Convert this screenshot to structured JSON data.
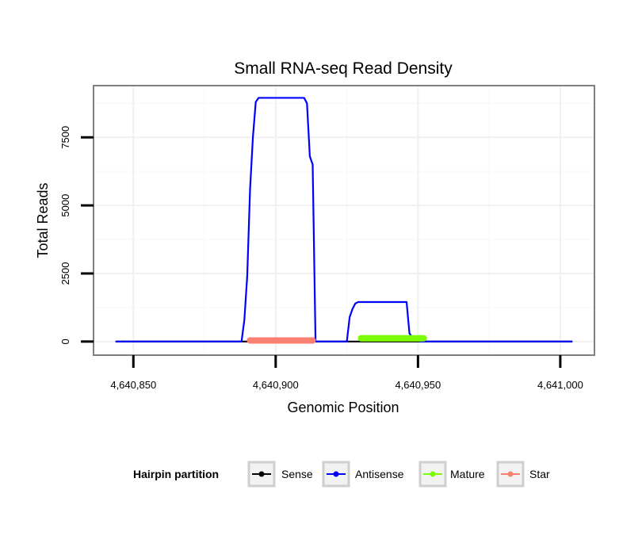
{
  "chart_data": {
    "type": "line",
    "title": "Small RNA-seq Read Density",
    "xlabel": "Genomic Position",
    "ylabel": "Total Reads",
    "xlim": [
      4640836,
      4641012
    ],
    "ylim": [
      -500,
      9400
    ],
    "x_ticks": [
      4640850,
      4640900,
      4640950,
      4641000
    ],
    "x_tick_labels": [
      "4,640,850",
      "4,640,900",
      "4,640,950",
      "4,641,000"
    ],
    "y_ticks": [
      0,
      2500,
      5000,
      7500
    ],
    "y_tick_labels": [
      "0",
      "2500",
      "5000",
      "7500"
    ],
    "grid": true,
    "legend": {
      "title": "Hairpin partition",
      "position": "bottom",
      "entries": [
        "Sense",
        "Antisense",
        "Mature",
        "Star"
      ]
    },
    "series": [
      {
        "name": "Sense",
        "color": "#000000",
        "points": [
          [
            4640844,
            0
          ],
          [
            4641004,
            0
          ]
        ]
      },
      {
        "name": "Antisense",
        "color": "#0000ff",
        "points": [
          [
            4640844,
            0
          ],
          [
            4640888,
            0
          ],
          [
            4640889,
            800
          ],
          [
            4640890,
            2400
          ],
          [
            4640891,
            5600
          ],
          [
            4640892,
            7500
          ],
          [
            4640893,
            8800
          ],
          [
            4640894,
            8950
          ],
          [
            4640910,
            8950
          ],
          [
            4640911,
            8750
          ],
          [
            4640912,
            6800
          ],
          [
            4640913,
            6500
          ],
          [
            4640914,
            0
          ],
          [
            4640925,
            0
          ],
          [
            4640926,
            900
          ],
          [
            4640927,
            1200
          ],
          [
            4640928,
            1400
          ],
          [
            4640929,
            1450
          ],
          [
            4640946,
            1450
          ],
          [
            4640947,
            300
          ],
          [
            4640948,
            150
          ],
          [
            4640951,
            0
          ],
          [
            4641004,
            0
          ]
        ]
      },
      {
        "name": "Mature",
        "color": "#7cfc00",
        "points": [
          [
            4640930,
            120
          ],
          [
            4640952,
            120
          ]
        ]
      },
      {
        "name": "Star",
        "color": "#fa8072",
        "points": [
          [
            4640891,
            40
          ],
          [
            4640913,
            40
          ]
        ]
      }
    ]
  }
}
